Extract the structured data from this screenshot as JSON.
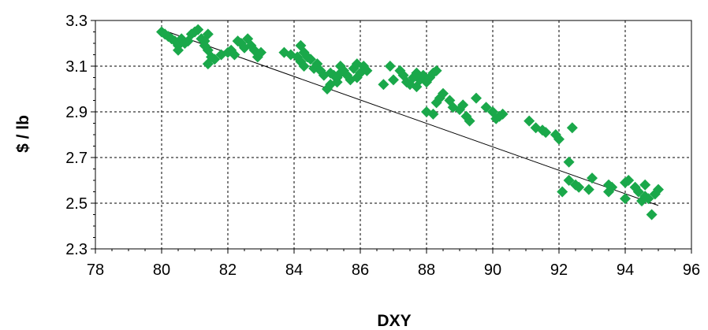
{
  "chart_data": {
    "type": "scatter",
    "title": "",
    "xlabel": "DXY",
    "ylabel": "$ / lb",
    "xlim": [
      78,
      96
    ],
    "ylim": [
      2.3,
      3.3
    ],
    "x_ticks": [
      "78",
      "80",
      "82",
      "84",
      "86",
      "88",
      "90",
      "92",
      "94",
      "96"
    ],
    "y_ticks": [
      "2.3",
      "2.5",
      "2.7",
      "2.9",
      "3.1",
      "3.3"
    ],
    "grid": true,
    "legend": "none",
    "marker": "diamond",
    "marker_color": "#1aa84a",
    "trendline": {
      "x": [
        80.0,
        95.0
      ],
      "y": [
        3.26,
        2.49
      ],
      "color": "#000000"
    },
    "points": [
      [
        80.0,
        3.25
      ],
      [
        80.1,
        3.24
      ],
      [
        80.2,
        3.23
      ],
      [
        80.3,
        3.22
      ],
      [
        80.4,
        3.21
      ],
      [
        80.5,
        3.19
      ],
      [
        80.5,
        3.17
      ],
      [
        80.6,
        3.22
      ],
      [
        80.7,
        3.2
      ],
      [
        80.8,
        3.21
      ],
      [
        80.9,
        3.24
      ],
      [
        81.0,
        3.25
      ],
      [
        81.1,
        3.26
      ],
      [
        81.2,
        3.22
      ],
      [
        81.3,
        3.21
      ],
      [
        81.3,
        3.19
      ],
      [
        81.4,
        3.24
      ],
      [
        81.4,
        3.17
      ],
      [
        81.5,
        3.14
      ],
      [
        81.4,
        3.11
      ],
      [
        81.6,
        3.13
      ],
      [
        81.8,
        3.15
      ],
      [
        82.0,
        3.16
      ],
      [
        82.1,
        3.17
      ],
      [
        82.2,
        3.15
      ],
      [
        82.3,
        3.21
      ],
      [
        82.4,
        3.2
      ],
      [
        82.5,
        3.18
      ],
      [
        82.6,
        3.22
      ],
      [
        82.7,
        3.19
      ],
      [
        82.8,
        3.17
      ],
      [
        82.9,
        3.14
      ],
      [
        83.0,
        3.16
      ],
      [
        83.7,
        3.16
      ],
      [
        83.9,
        3.15
      ],
      [
        84.1,
        3.14
      ],
      [
        84.2,
        3.12
      ],
      [
        84.2,
        3.19
      ],
      [
        84.3,
        3.1
      ],
      [
        84.3,
        3.16
      ],
      [
        84.4,
        3.14
      ],
      [
        84.5,
        3.13
      ],
      [
        84.6,
        3.09
      ],
      [
        84.7,
        3.11
      ],
      [
        84.8,
        3.08
      ],
      [
        84.9,
        3.06
      ],
      [
        85.0,
        3.0
      ],
      [
        85.1,
        3.02
      ],
      [
        85.1,
        3.07
      ],
      [
        85.2,
        3.06
      ],
      [
        85.3,
        3.05
      ],
      [
        85.3,
        3.03
      ],
      [
        85.4,
        3.07
      ],
      [
        85.4,
        3.1
      ],
      [
        85.5,
        3.08
      ],
      [
        85.6,
        3.06
      ],
      [
        85.7,
        3.04
      ],
      [
        85.8,
        3.09
      ],
      [
        85.9,
        3.05
      ],
      [
        85.9,
        3.11
      ],
      [
        86.0,
        3.07
      ],
      [
        86.1,
        3.1
      ],
      [
        86.2,
        3.08
      ],
      [
        86.7,
        3.02
      ],
      [
        86.9,
        3.1
      ],
      [
        87.0,
        3.04
      ],
      [
        87.2,
        3.08
      ],
      [
        87.3,
        3.06
      ],
      [
        87.4,
        3.03
      ],
      [
        87.5,
        3.02
      ],
      [
        87.6,
        3.05
      ],
      [
        87.7,
        3.01
      ],
      [
        87.7,
        3.07
      ],
      [
        87.8,
        3.04
      ],
      [
        87.9,
        3.06
      ],
      [
        88.0,
        3.03
      ],
      [
        88.1,
        3.05
      ],
      [
        88.2,
        3.07
      ],
      [
        88.3,
        3.08
      ],
      [
        88.0,
        2.9
      ],
      [
        88.2,
        2.89
      ],
      [
        88.3,
        2.94
      ],
      [
        88.4,
        2.96
      ],
      [
        88.5,
        2.98
      ],
      [
        88.7,
        2.95
      ],
      [
        88.8,
        2.92
      ],
      [
        89.0,
        2.91
      ],
      [
        89.1,
        2.93
      ],
      [
        89.2,
        2.88
      ],
      [
        89.3,
        2.86
      ],
      [
        89.5,
        2.96
      ],
      [
        89.8,
        2.92
      ],
      [
        90.0,
        2.9
      ],
      [
        90.1,
        2.87
      ],
      [
        90.2,
        2.88
      ],
      [
        90.3,
        2.89
      ],
      [
        91.1,
        2.86
      ],
      [
        91.3,
        2.83
      ],
      [
        91.5,
        2.82
      ],
      [
        91.6,
        2.81
      ],
      [
        91.9,
        2.8
      ],
      [
        92.0,
        2.78
      ],
      [
        92.4,
        2.83
      ],
      [
        92.3,
        2.68
      ],
      [
        92.1,
        2.55
      ],
      [
        92.3,
        2.6
      ],
      [
        92.5,
        2.58
      ],
      [
        92.6,
        2.57
      ],
      [
        92.9,
        2.56
      ],
      [
        93.0,
        2.61
      ],
      [
        93.5,
        2.55
      ],
      [
        93.6,
        2.57
      ],
      [
        93.5,
        2.58
      ],
      [
        94.0,
        2.59
      ],
      [
        94.1,
        2.6
      ],
      [
        94.0,
        2.52
      ],
      [
        94.3,
        2.57
      ],
      [
        94.4,
        2.55
      ],
      [
        94.5,
        2.51
      ],
      [
        94.6,
        2.53
      ],
      [
        94.6,
        2.58
      ],
      [
        94.7,
        2.52
      ],
      [
        94.8,
        2.45
      ],
      [
        94.9,
        2.54
      ],
      [
        95.0,
        2.56
      ]
    ]
  }
}
